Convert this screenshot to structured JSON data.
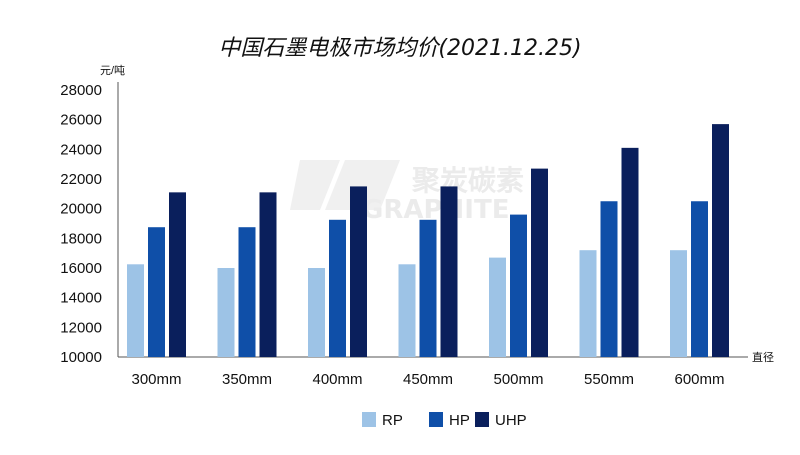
{
  "chart_data": {
    "type": "bar",
    "title": "中国石墨电极市场均价(2021.12.25)",
    "ylabel": "元/吨",
    "xlabel": "直径",
    "categories": [
      "300mm",
      "350mm",
      "400mm",
      "450mm",
      "500mm",
      "550mm",
      "600mm"
    ],
    "series": [
      {
        "name": "RP",
        "color": "#9dc3e6",
        "values": [
          16250,
          16000,
          16000,
          16250,
          16700,
          17200,
          17200
        ]
      },
      {
        "name": "HP",
        "color": "#0f4fa8",
        "values": [
          18750,
          18750,
          19250,
          19250,
          19600,
          20500,
          20500
        ]
      },
      {
        "name": "UHP",
        "color": "#0a1f5c",
        "values": [
          21100,
          21100,
          21500,
          21500,
          22700,
          24100,
          25700
        ]
      }
    ],
    "ylim": [
      10000,
      28000
    ],
    "yticks": [
      10000,
      12000,
      14000,
      16000,
      18000,
      20000,
      22000,
      24000,
      26000,
      28000
    ],
    "grid": false,
    "legend_position": "bottom"
  },
  "watermark": {
    "text_cn": "聚炭碳素",
    "text_en": "GRAPHITE"
  }
}
